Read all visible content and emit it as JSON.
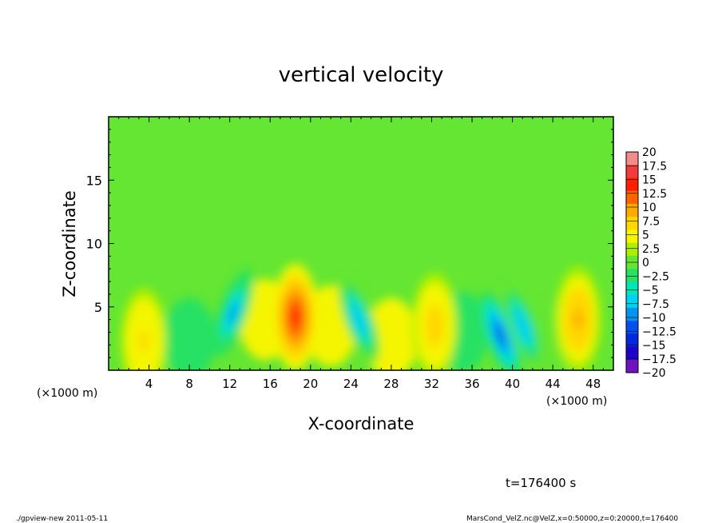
{
  "chart_data": {
    "type": "heatmap",
    "title": "vertical velocity",
    "xlabel": "X-coordinate",
    "ylabel": "Z-coordinate",
    "x_unit_label": "(×1000 m)",
    "y_unit_label": "(×1000 m)",
    "xlim": [
      0,
      50
    ],
    "ylim": [
      0,
      20
    ],
    "x_ticks": [
      4,
      8,
      12,
      16,
      20,
      24,
      28,
      32,
      36,
      40,
      44,
      48
    ],
    "x_tick_labels": [
      "4",
      "8",
      "12",
      "16",
      "20",
      "24",
      "28",
      "32",
      "36",
      "40",
      "44",
      "48"
    ],
    "y_ticks": [
      5,
      10,
      15
    ],
    "y_tick_labels": [
      "5",
      "10",
      "15"
    ],
    "colorbar": {
      "levels": [
        20,
        17.5,
        15,
        12.5,
        10,
        7.5,
        5,
        2.5,
        0,
        -2.5,
        -5,
        -7.5,
        -10,
        -12.5,
        -15,
        -17.5,
        -20
      ],
      "level_labels": [
        "20",
        "17.5",
        "15",
        "12.5",
        "10",
        "7.5",
        "5",
        "2.5",
        "0",
        "−2.5",
        "−5",
        "−7.5",
        "−10",
        "−12.5",
        "−15",
        "−17.5",
        "−20"
      ],
      "colors": [
        "#f08c8c",
        "#f03c3c",
        "#ff1e00",
        "#ff6400",
        "#ffaa00",
        "#ffd700",
        "#f5f500",
        "#aaf000",
        "#64e632",
        "#28e164",
        "#00e6b4",
        "#00d2f0",
        "#0096f0",
        "#0050f0",
        "#0028dc",
        "#1e00c8",
        "#6e14be"
      ]
    },
    "background_value": 0.5,
    "features": [
      {
        "kind": "updraft",
        "x": 3.5,
        "z": 2.3,
        "peak": 6
      },
      {
        "kind": "updraft",
        "x": 18.5,
        "z": 4.2,
        "peak": 13
      },
      {
        "kind": "updraft",
        "x": 32.3,
        "z": 3.5,
        "peak": 7
      },
      {
        "kind": "updraft",
        "x": 46.5,
        "z": 4.0,
        "peak": 8
      },
      {
        "kind": "downdraft",
        "x": 12.3,
        "z": 4.5,
        "peak": -11
      },
      {
        "kind": "downdraft",
        "x": 24.8,
        "z": 4.0,
        "peak": -10
      },
      {
        "kind": "downdraft",
        "x": 38.8,
        "z": 2.8,
        "peak": -13
      },
      {
        "kind": "downdraft",
        "x": 41.0,
        "z": 3.5,
        "peak": -10
      }
    ]
  },
  "time_label": "t=176400 s",
  "footer_left": "./gpview-new  2011-05-11",
  "footer_right": "MarsCond_VelZ.nc@VelZ,x=0:50000,z=0:20000,t=176400"
}
